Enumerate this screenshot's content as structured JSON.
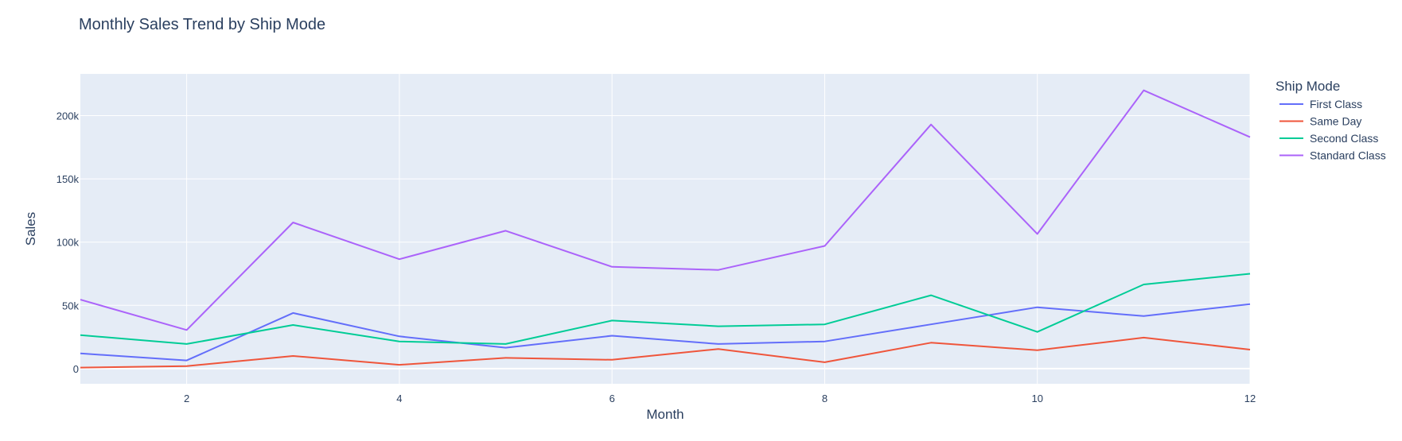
{
  "chart_data": {
    "type": "line",
    "title": "Monthly Sales Trend by Ship Mode",
    "xlabel": "Month",
    "ylabel": "Sales",
    "xlim": [
      1,
      12
    ],
    "ylim": [
      -12000,
      233000
    ],
    "x_ticks": [
      2,
      4,
      6,
      8,
      10,
      12
    ],
    "y_ticks": [
      0,
      50000,
      100000,
      150000,
      200000
    ],
    "y_tick_labels": [
      "0",
      "50k",
      "100k",
      "150k",
      "200k"
    ],
    "x": [
      1,
      2,
      3,
      4,
      5,
      6,
      7,
      8,
      9,
      10,
      11,
      12
    ],
    "legend_title": "Ship Mode",
    "legend_position": "right",
    "grid": true,
    "series": [
      {
        "name": "First Class",
        "color": "#636efa",
        "values": [
          12000,
          6500,
          44000,
          25500,
          16500,
          26000,
          19500,
          21500,
          35000,
          48500,
          41500,
          51000
        ]
      },
      {
        "name": "Same Day",
        "color": "#ef553b",
        "values": [
          800,
          2000,
          10000,
          3000,
          8500,
          7000,
          15500,
          5000,
          20500,
          14500,
          24500,
          15000
        ]
      },
      {
        "name": "Second Class",
        "color": "#00cc96",
        "values": [
          26500,
          19500,
          34500,
          21500,
          19500,
          38000,
          33500,
          35000,
          58000,
          29000,
          66500,
          75000
        ]
      },
      {
        "name": "Standard Class",
        "color": "#ab63fa",
        "values": [
          54500,
          30500,
          115500,
          86500,
          109000,
          80500,
          78000,
          97000,
          193000,
          106500,
          220000,
          183000
        ]
      }
    ]
  }
}
